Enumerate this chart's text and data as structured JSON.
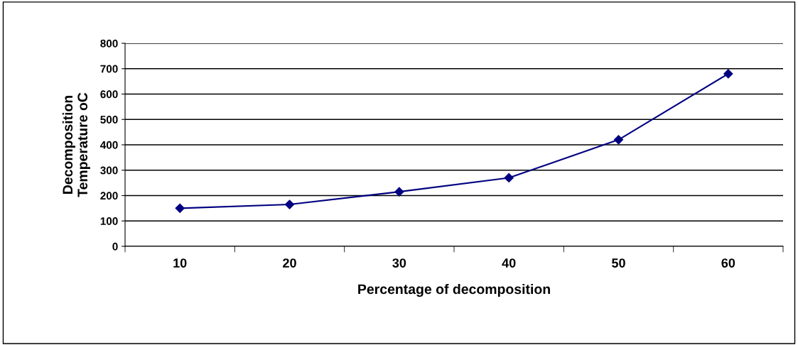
{
  "chart_data": {
    "type": "line",
    "xlabel": "Percentage of decomposition",
    "ylabel": "Decomposition\nTemperature oC",
    "categories": [
      "10",
      "20",
      "30",
      "40",
      "50",
      "60"
    ],
    "series": [
      {
        "color": "#000080",
        "values": [
          150,
          165,
          215,
          270,
          420,
          680
        ]
      }
    ],
    "ylim": [
      0,
      800
    ],
    "yticks": [
      0,
      100,
      200,
      300,
      400,
      500,
      600,
      700,
      800
    ],
    "grid": "y",
    "marker": "diamond",
    "line_style": "solid",
    "legend": false
  }
}
